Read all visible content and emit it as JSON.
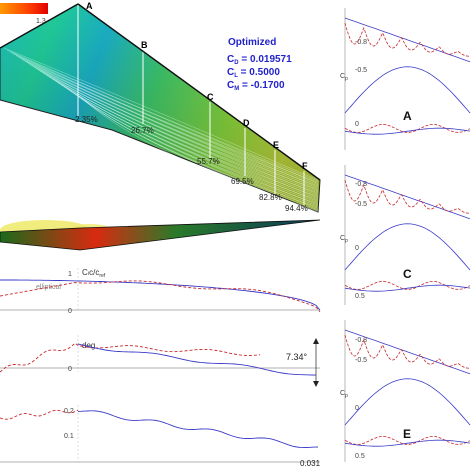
{
  "colorbar": {
    "max_label": "1.3"
  },
  "wing": {
    "section_labels": [
      "A",
      "B",
      "C",
      "D",
      "E",
      "F"
    ],
    "percent_labels": [
      "2.35%",
      "26.7%",
      "55.7%",
      "69.5%",
      "82.8%",
      "94.4%"
    ],
    "title": "Optimized",
    "coefficients": [
      "C_D = 0.019571",
      "C_L = 0.5000",
      "C_M = -0.1700"
    ],
    "coef_display": {
      "cd_sym": "C",
      "cd_sub": "D",
      "cd_val": " = 0.019571",
      "cl_sym": "C",
      "cl_sub": "L",
      "cl_val": " = 0.5000",
      "cm_sym": "C",
      "cm_sub": "M",
      "cm_val": " = -0.1700"
    }
  },
  "lift_plot": {
    "ylabel": "Cₗc/c",
    "ylabel_sub": "ref",
    "legend": "elliptical",
    "yticks": [
      "1",
      "0"
    ]
  },
  "twist_plot": {
    "ylabel": "deg",
    "yticks": [
      "0"
    ],
    "annotation": "7.34°"
  },
  "tc_plot": {
    "yticks": [
      "0.2",
      "0.1"
    ],
    "annotation": "0.031"
  },
  "cp_plots": [
    {
      "section": "A",
      "yticks": [
        "-0.8",
        "-0.5",
        "0"
      ],
      "ylabel": "C",
      "ylabel_sub": "p"
    },
    {
      "section": "C",
      "yticks": [
        "-0.8",
        "-0.5",
        "0",
        "0.5"
      ],
      "ylabel": "C",
      "ylabel_sub": "p"
    },
    {
      "section": "E",
      "yticks": [
        "-0.8",
        "-0.5",
        "0",
        "0.5"
      ],
      "ylabel": "C",
      "ylabel_sub": "p"
    }
  ],
  "colors": {
    "red_curve": "#c8282b",
    "blue_curve": "#3b3bc8",
    "title_blue": "#2222cc",
    "axis": "#808080"
  }
}
